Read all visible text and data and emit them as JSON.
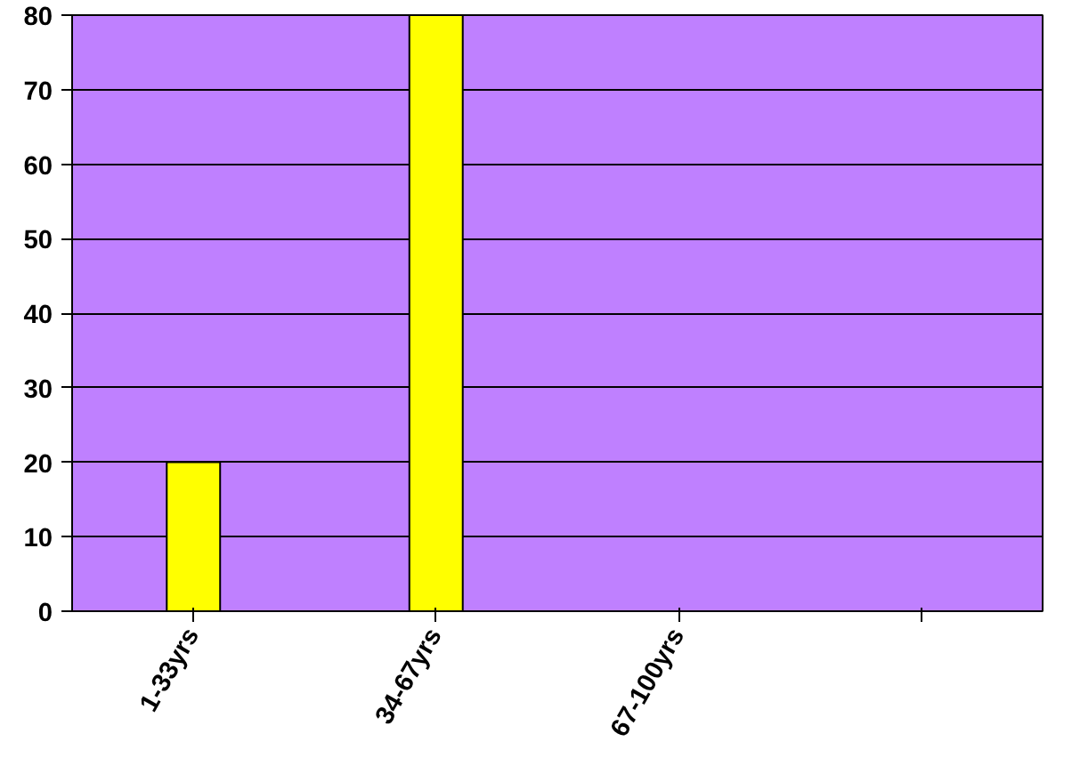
{
  "chart_data": {
    "type": "bar",
    "categories": [
      "1-33yrs",
      "34-67yrs",
      "67-100yrs",
      null
    ],
    "values": [
      20,
      80,
      0,
      null
    ],
    "color": "#ffff00",
    "ylim": [
      0,
      80
    ],
    "yticks": [
      0,
      10,
      20,
      30,
      40,
      50,
      60,
      70,
      80
    ],
    "grid": "y"
  }
}
